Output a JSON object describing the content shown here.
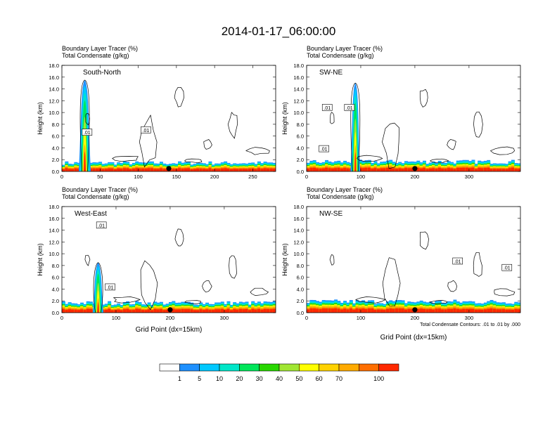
{
  "page_title": "2014-01-17_06:00:00",
  "chart_data": [
    {
      "type": "contour",
      "panel_label": "South-North",
      "title_line1": "Boundary Layer Tracer    (%)",
      "title_line2": "Total Condensate    (g/kg)",
      "ylabel": "Height (km)",
      "xlabel": "",
      "ylim": [
        0,
        18
      ],
      "xlim": [
        0,
        280
      ],
      "yticks": [
        "0.0",
        "2.0",
        "4.0",
        "6.0",
        "8.0",
        "10.0",
        "12.0",
        "14.0",
        "16.0",
        "18.0"
      ],
      "xticks": [
        {
          "v": 0,
          "t": "0"
        },
        {
          "v": 50,
          "t": "50"
        },
        {
          "v": 100,
          "t": "100"
        },
        {
          "v": 150,
          "t": "150"
        },
        {
          "v": 200,
          "t": "200"
        },
        {
          "v": 250,
          "t": "250"
        }
      ],
      "plume": {
        "x": 30,
        "top": 15.5,
        "width": 8
      },
      "boundary_layer_top": 1.4,
      "marker_x": 140,
      "contour_labels": [
        {
          "x": 33,
          "y": 6.6,
          "t": ".01"
        },
        {
          "x": 110,
          "y": 7.0,
          "t": ".01"
        }
      ],
      "footer": ""
    },
    {
      "type": "contour",
      "panel_label": "SW-NE",
      "title_line1": "Boundary Layer Tracer    (%)",
      "title_line2": "Total Condensate    (g/kg)",
      "ylabel": "Height (km)",
      "xlabel": "",
      "ylim": [
        0,
        18
      ],
      "xlim": [
        0,
        395
      ],
      "yticks": [
        "0.0",
        "2.0",
        "4.0",
        "6.0",
        "8.0",
        "10.0",
        "12.0",
        "14.0",
        "16.0",
        "18.0"
      ],
      "xticks": [
        {
          "v": 0,
          "t": "0"
        },
        {
          "v": 100,
          "t": "100"
        },
        {
          "v": 200,
          "t": "200"
        },
        {
          "v": 300,
          "t": "300"
        }
      ],
      "plume": {
        "x": 90,
        "top": 15.0,
        "width": 9
      },
      "boundary_layer_top": 1.6,
      "marker_x": 200,
      "contour_labels": [
        {
          "x": 38,
          "y": 10.8,
          "t": ".01"
        },
        {
          "x": 79,
          "y": 10.8,
          "t": ".01"
        },
        {
          "x": 32,
          "y": 3.8,
          "t": ".01"
        }
      ],
      "footer": ""
    },
    {
      "type": "contour",
      "panel_label": "West-East",
      "title_line1": "Boundary Layer Tracer    (%)",
      "title_line2": "Total Condensate    (g/kg)",
      "ylabel": "Height (km)",
      "xlabel": "Grid Point (dx=15km)",
      "ylim": [
        0,
        18
      ],
      "xlim": [
        0,
        395
      ],
      "yticks": [
        "0.0",
        "2.0",
        "4.0",
        "6.0",
        "8.0",
        "10.0",
        "12.0",
        "14.0",
        "16.0",
        "18.0"
      ],
      "xticks": [
        {
          "v": 0,
          "t": "0"
        },
        {
          "v": 100,
          "t": "100"
        },
        {
          "v": 200,
          "t": "200"
        },
        {
          "v": 300,
          "t": "300"
        }
      ],
      "plume": {
        "x": 67,
        "top": 8.5,
        "width": 10
      },
      "boundary_layer_top": 1.6,
      "marker_x": 200,
      "contour_labels": [
        {
          "x": 73,
          "y": 14.8,
          "t": ".01"
        },
        {
          "x": 89,
          "y": 4.3,
          "t": ".01"
        }
      ],
      "footer": ""
    },
    {
      "type": "contour",
      "panel_label": "NW-SE",
      "title_line1": "Boundary Layer Tracer    (%)",
      "title_line2": "Total Condensate    (g/kg)",
      "ylabel": "Height (km)",
      "xlabel": "Grid Point (dx=15km)",
      "ylim": [
        0,
        18
      ],
      "xlim": [
        0,
        395
      ],
      "yticks": [
        "0.0",
        "2.0",
        "4.0",
        "6.0",
        "8.0",
        "10.0",
        "12.0",
        "14.0",
        "16.0",
        "18.0"
      ],
      "xticks": [
        {
          "v": 0,
          "t": "0"
        },
        {
          "v": 100,
          "t": "100"
        },
        {
          "v": 200,
          "t": "200"
        },
        {
          "v": 300,
          "t": "300"
        }
      ],
      "plume": null,
      "boundary_layer_top": 1.8,
      "marker_x": 200,
      "contour_labels": [
        {
          "x": 279,
          "y": 8.7,
          "t": ".01"
        },
        {
          "x": 370,
          "y": 7.6,
          "t": ".01"
        }
      ],
      "footer": "Total Condensate Contours: .01 to .01 by .000"
    }
  ],
  "colorbar": {
    "colors": [
      "#ffffff",
      "#1e90ff",
      "#00c8ff",
      "#00e6c8",
      "#00e65a",
      "#28d700",
      "#a0e632",
      "#ffff00",
      "#ffd200",
      "#ffaa00",
      "#ff6e00",
      "#ff2800"
    ],
    "labels": [
      "1",
      "5",
      "10",
      "20",
      "30",
      "40",
      "50",
      "60",
      "70",
      "100"
    ]
  }
}
